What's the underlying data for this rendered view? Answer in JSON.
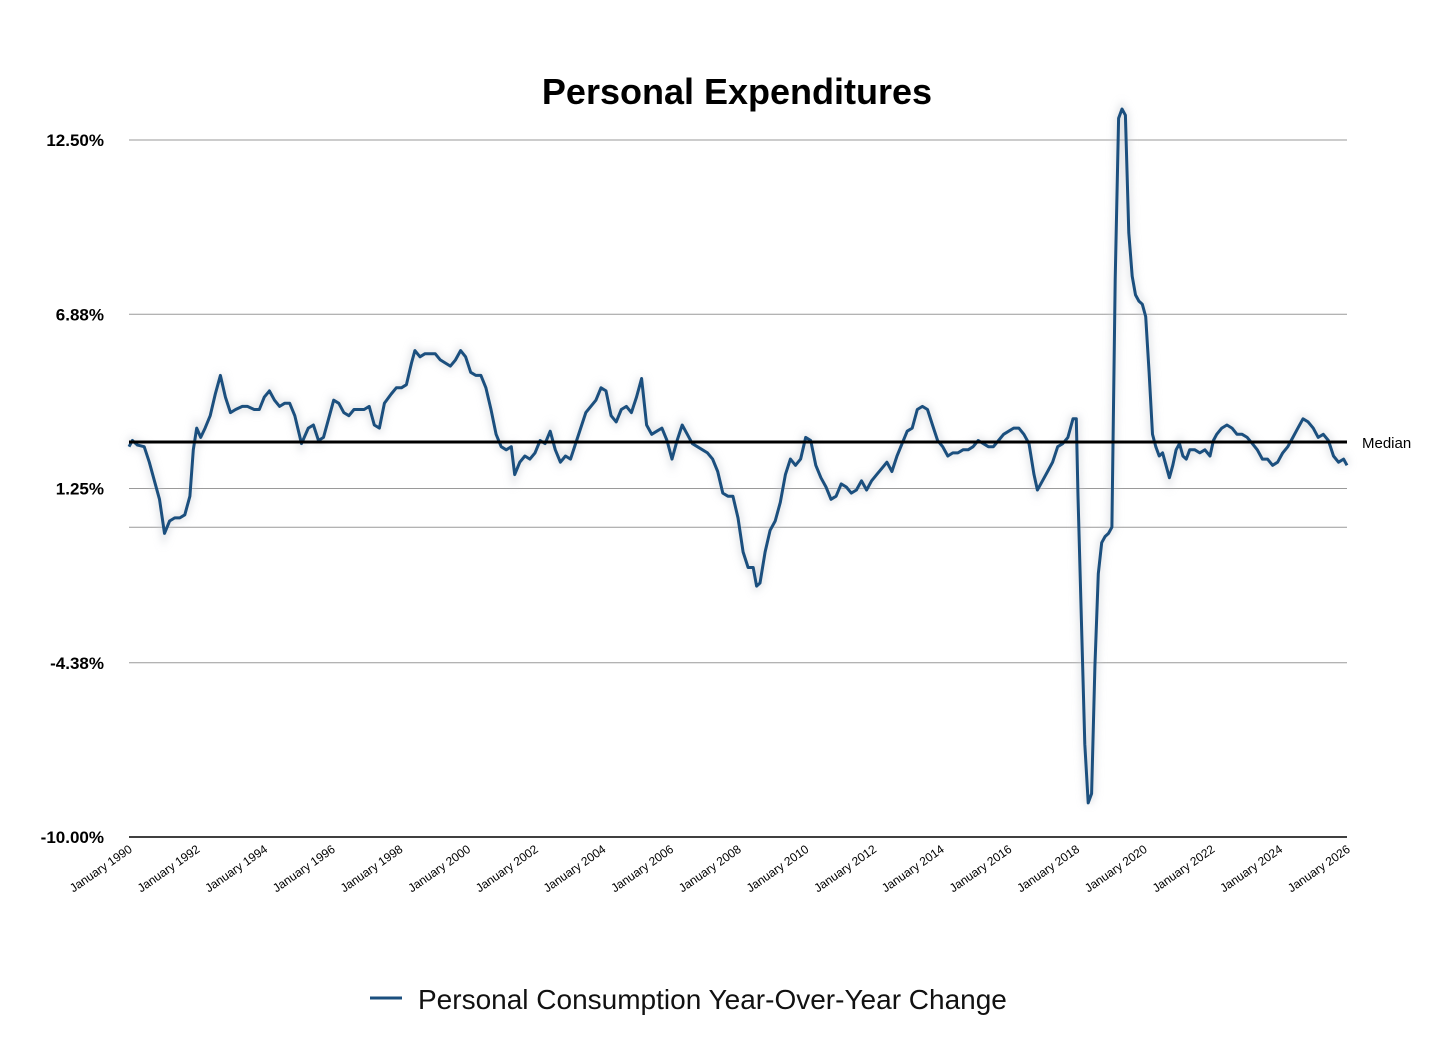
{
  "chart_data": {
    "type": "line",
    "title": "Personal Expenditures",
    "ylim": [
      -10.0,
      12.5
    ],
    "yticks": [
      "12.50%",
      "6.88%",
      "1.25%",
      "-4.38%",
      "-10.00%"
    ],
    "ytick_values": [
      12.5,
      6.875,
      1.25,
      -4.375,
      -10.0
    ],
    "minor_gridline": 0.0,
    "xlim": [
      1990.0,
      2026.0
    ],
    "xticks": [
      "January 1990",
      "January 1992",
      "January 1994",
      "January 1996",
      "January 1998",
      "January 2000",
      "January 2002",
      "January 2004",
      "January 2006",
      "January 2008",
      "January 2010",
      "January 2012",
      "January 2014",
      "January 2016",
      "January 2018",
      "January 2020",
      "January 2022",
      "January 2024",
      "January 2026"
    ],
    "xtick_values": [
      1990,
      1992,
      1994,
      1996,
      1998,
      2000,
      2002,
      2004,
      2006,
      2008,
      2010,
      2012,
      2014,
      2016,
      2018,
      2020,
      2022,
      2024,
      2026
    ],
    "median": {
      "label": "Median",
      "value": 2.75
    },
    "grid": true,
    "legend_position": "bottom-center",
    "series": [
      {
        "name": "Personal Consumption Year-Over-Year Change",
        "color": "#1b4f7e",
        "points": [
          [
            1990.0,
            2.6
          ],
          [
            1990.1,
            2.8
          ],
          [
            1990.25,
            2.65
          ],
          [
            1990.45,
            2.6
          ],
          [
            1990.6,
            2.1
          ],
          [
            1990.75,
            1.5
          ],
          [
            1990.9,
            0.9
          ],
          [
            1991.05,
            -0.2
          ],
          [
            1991.2,
            0.2
          ],
          [
            1991.35,
            0.3
          ],
          [
            1991.5,
            0.3
          ],
          [
            1991.65,
            0.4
          ],
          [
            1991.8,
            1.0
          ],
          [
            1991.9,
            2.5
          ],
          [
            1992.0,
            3.2
          ],
          [
            1992.12,
            2.9
          ],
          [
            1992.25,
            3.2
          ],
          [
            1992.4,
            3.6
          ],
          [
            1992.55,
            4.3
          ],
          [
            1992.7,
            4.9
          ],
          [
            1992.85,
            4.2
          ],
          [
            1993.0,
            3.7
          ],
          [
            1993.15,
            3.8
          ],
          [
            1993.35,
            3.9
          ],
          [
            1993.5,
            3.9
          ],
          [
            1993.7,
            3.8
          ],
          [
            1993.85,
            3.8
          ],
          [
            1994.0,
            4.2
          ],
          [
            1994.15,
            4.4
          ],
          [
            1994.3,
            4.1
          ],
          [
            1994.45,
            3.9
          ],
          [
            1994.6,
            4.0
          ],
          [
            1994.75,
            4.0
          ],
          [
            1994.9,
            3.6
          ],
          [
            1995.1,
            2.7
          ],
          [
            1995.3,
            3.2
          ],
          [
            1995.45,
            3.3
          ],
          [
            1995.6,
            2.8
          ],
          [
            1995.75,
            2.9
          ],
          [
            1995.9,
            3.5
          ],
          [
            1996.05,
            4.1
          ],
          [
            1996.2,
            4.0
          ],
          [
            1996.35,
            3.7
          ],
          [
            1996.5,
            3.6
          ],
          [
            1996.65,
            3.8
          ],
          [
            1996.8,
            3.8
          ],
          [
            1996.95,
            3.8
          ],
          [
            1997.1,
            3.9
          ],
          [
            1997.25,
            3.3
          ],
          [
            1997.4,
            3.2
          ],
          [
            1997.55,
            4.0
          ],
          [
            1997.75,
            4.3
          ],
          [
            1997.9,
            4.5
          ],
          [
            1998.05,
            4.5
          ],
          [
            1998.2,
            4.6
          ],
          [
            1998.35,
            5.3
          ],
          [
            1998.45,
            5.7
          ],
          [
            1998.6,
            5.5
          ],
          [
            1998.75,
            5.6
          ],
          [
            1998.9,
            5.6
          ],
          [
            1999.05,
            5.6
          ],
          [
            1999.2,
            5.4
          ],
          [
            1999.35,
            5.3
          ],
          [
            1999.5,
            5.2
          ],
          [
            1999.65,
            5.4
          ],
          [
            1999.8,
            5.7
          ],
          [
            1999.95,
            5.5
          ],
          [
            2000.1,
            5.0
          ],
          [
            2000.25,
            4.9
          ],
          [
            2000.4,
            4.9
          ],
          [
            2000.55,
            4.5
          ],
          [
            2000.7,
            3.8
          ],
          [
            2000.85,
            3.0
          ],
          [
            2001.0,
            2.6
          ],
          [
            2001.15,
            2.5
          ],
          [
            2001.3,
            2.6
          ],
          [
            2001.4,
            1.7
          ],
          [
            2001.55,
            2.1
          ],
          [
            2001.7,
            2.3
          ],
          [
            2001.85,
            2.2
          ],
          [
            2002.0,
            2.4
          ],
          [
            2002.15,
            2.8
          ],
          [
            2002.3,
            2.7
          ],
          [
            2002.45,
            3.1
          ],
          [
            2002.6,
            2.5
          ],
          [
            2002.75,
            2.1
          ],
          [
            2002.9,
            2.3
          ],
          [
            2003.05,
            2.2
          ],
          [
            2003.2,
            2.7
          ],
          [
            2003.35,
            3.2
          ],
          [
            2003.5,
            3.7
          ],
          [
            2003.65,
            3.9
          ],
          [
            2003.8,
            4.1
          ],
          [
            2003.95,
            4.5
          ],
          [
            2004.1,
            4.4
          ],
          [
            2004.25,
            3.6
          ],
          [
            2004.4,
            3.4
          ],
          [
            2004.55,
            3.8
          ],
          [
            2004.7,
            3.9
          ],
          [
            2004.85,
            3.7
          ],
          [
            2005.0,
            4.2
          ],
          [
            2005.15,
            4.8
          ],
          [
            2005.3,
            3.3
          ],
          [
            2005.45,
            3.0
          ],
          [
            2005.6,
            3.1
          ],
          [
            2005.75,
            3.2
          ],
          [
            2005.9,
            2.8
          ],
          [
            2006.05,
            2.2
          ],
          [
            2006.2,
            2.8
          ],
          [
            2006.35,
            3.3
          ],
          [
            2006.5,
            3.0
          ],
          [
            2006.65,
            2.7
          ],
          [
            2006.8,
            2.6
          ],
          [
            2006.95,
            2.5
          ],
          [
            2007.1,
            2.4
          ],
          [
            2007.25,
            2.2
          ],
          [
            2007.4,
            1.8
          ],
          [
            2007.55,
            1.1
          ],
          [
            2007.7,
            1.0
          ],
          [
            2007.85,
            1.0
          ],
          [
            2008.0,
            0.3
          ],
          [
            2008.15,
            -0.8
          ],
          [
            2008.3,
            -1.3
          ],
          [
            2008.45,
            -1.3
          ],
          [
            2008.55,
            -1.9
          ],
          [
            2008.65,
            -1.8
          ],
          [
            2008.8,
            -0.8
          ],
          [
            2008.95,
            -0.1
          ],
          [
            2009.1,
            0.2
          ],
          [
            2009.25,
            0.8
          ],
          [
            2009.4,
            1.7
          ],
          [
            2009.55,
            2.2
          ],
          [
            2009.7,
            2.0
          ],
          [
            2009.85,
            2.2
          ],
          [
            2010.0,
            2.9
          ],
          [
            2010.15,
            2.8
          ],
          [
            2010.3,
            2.0
          ],
          [
            2010.45,
            1.6
          ],
          [
            2010.6,
            1.3
          ],
          [
            2010.75,
            0.9
          ],
          [
            2010.9,
            1.0
          ],
          [
            2011.05,
            1.4
          ],
          [
            2011.2,
            1.3
          ],
          [
            2011.35,
            1.1
          ],
          [
            2011.5,
            1.2
          ],
          [
            2011.65,
            1.5
          ],
          [
            2011.8,
            1.2
          ],
          [
            2011.95,
            1.5
          ],
          [
            2012.1,
            1.7
          ],
          [
            2012.25,
            1.9
          ],
          [
            2012.4,
            2.1
          ],
          [
            2012.55,
            1.8
          ],
          [
            2012.7,
            2.3
          ],
          [
            2012.85,
            2.7
          ],
          [
            2013.0,
            3.1
          ],
          [
            2013.15,
            3.2
          ],
          [
            2013.3,
            3.8
          ],
          [
            2013.45,
            3.9
          ],
          [
            2013.6,
            3.8
          ],
          [
            2013.75,
            3.3
          ],
          [
            2013.9,
            2.8
          ],
          [
            2014.05,
            2.6
          ],
          [
            2014.2,
            2.3
          ],
          [
            2014.35,
            2.4
          ],
          [
            2014.5,
            2.4
          ],
          [
            2014.65,
            2.5
          ],
          [
            2014.8,
            2.5
          ],
          [
            2014.95,
            2.6
          ],
          [
            2015.1,
            2.8
          ],
          [
            2015.25,
            2.7
          ],
          [
            2015.4,
            2.6
          ],
          [
            2015.55,
            2.6
          ],
          [
            2015.7,
            2.8
          ],
          [
            2015.85,
            3.0
          ],
          [
            2016.0,
            3.1
          ],
          [
            2016.15,
            3.2
          ],
          [
            2016.3,
            3.2
          ],
          [
            2016.45,
            3.0
          ],
          [
            2016.6,
            2.7
          ],
          [
            2016.75,
            1.7
          ],
          [
            2016.85,
            1.2
          ],
          [
            2017.0,
            1.5
          ],
          [
            2017.15,
            1.8
          ],
          [
            2017.3,
            2.1
          ],
          [
            2017.45,
            2.6
          ],
          [
            2017.6,
            2.7
          ],
          [
            2017.75,
            2.9
          ],
          [
            2017.9,
            3.5
          ],
          [
            2018.0,
            3.5
          ],
          [
            2018.05,
            1.0
          ],
          [
            2018.15,
            -3.0
          ],
          [
            2018.25,
            -7.0
          ],
          [
            2018.35,
            -8.9
          ],
          [
            2018.45,
            -8.6
          ],
          [
            2018.55,
            -4.5
          ],
          [
            2018.65,
            -1.5
          ],
          [
            2018.75,
            -0.5
          ],
          [
            2018.85,
            -0.3
          ],
          [
            2018.95,
            -0.2
          ],
          [
            2019.05,
            0.0
          ],
          [
            2019.15,
            8.0
          ],
          [
            2019.25,
            13.2
          ],
          [
            2019.35,
            13.5
          ],
          [
            2019.45,
            13.3
          ],
          [
            2019.55,
            9.5
          ],
          [
            2019.65,
            8.1
          ],
          [
            2019.75,
            7.5
          ],
          [
            2019.85,
            7.3
          ],
          [
            2019.95,
            7.2
          ],
          [
            2020.05,
            6.8
          ],
          [
            2020.15,
            5.0
          ],
          [
            2020.25,
            3.0
          ],
          [
            2020.35,
            2.6
          ],
          [
            2020.45,
            2.3
          ],
          [
            2020.55,
            2.4
          ],
          [
            2020.65,
            2.0
          ],
          [
            2020.75,
            1.6
          ],
          [
            2020.85,
            2.0
          ],
          [
            2020.95,
            2.5
          ],
          [
            2021.05,
            2.7
          ],
          [
            2021.15,
            2.3
          ],
          [
            2021.25,
            2.2
          ],
          [
            2021.35,
            2.5
          ],
          [
            2021.5,
            2.5
          ],
          [
            2021.65,
            2.4
          ],
          [
            2021.8,
            2.5
          ],
          [
            2021.95,
            2.3
          ],
          [
            2022.05,
            2.8
          ],
          [
            2022.15,
            3.0
          ],
          [
            2022.3,
            3.2
          ],
          [
            2022.45,
            3.3
          ],
          [
            2022.6,
            3.2
          ],
          [
            2022.75,
            3.0
          ],
          [
            2022.9,
            3.0
          ],
          [
            2023.05,
            2.9
          ],
          [
            2023.2,
            2.7
          ],
          [
            2023.35,
            2.5
          ],
          [
            2023.5,
            2.2
          ],
          [
            2023.65,
            2.2
          ],
          [
            2023.8,
            2.0
          ],
          [
            2023.95,
            2.1
          ],
          [
            2024.1,
            2.4
          ],
          [
            2024.25,
            2.6
          ],
          [
            2024.4,
            2.9
          ],
          [
            2024.55,
            3.2
          ],
          [
            2024.7,
            3.5
          ],
          [
            2024.85,
            3.4
          ],
          [
            2025.0,
            3.2
          ],
          [
            2025.15,
            2.9
          ],
          [
            2025.3,
            3.0
          ],
          [
            2025.45,
            2.8
          ],
          [
            2025.6,
            2.3
          ],
          [
            2025.75,
            2.1
          ],
          [
            2025.9,
            2.2
          ],
          [
            2026.0,
            2.0
          ]
        ]
      }
    ]
  }
}
